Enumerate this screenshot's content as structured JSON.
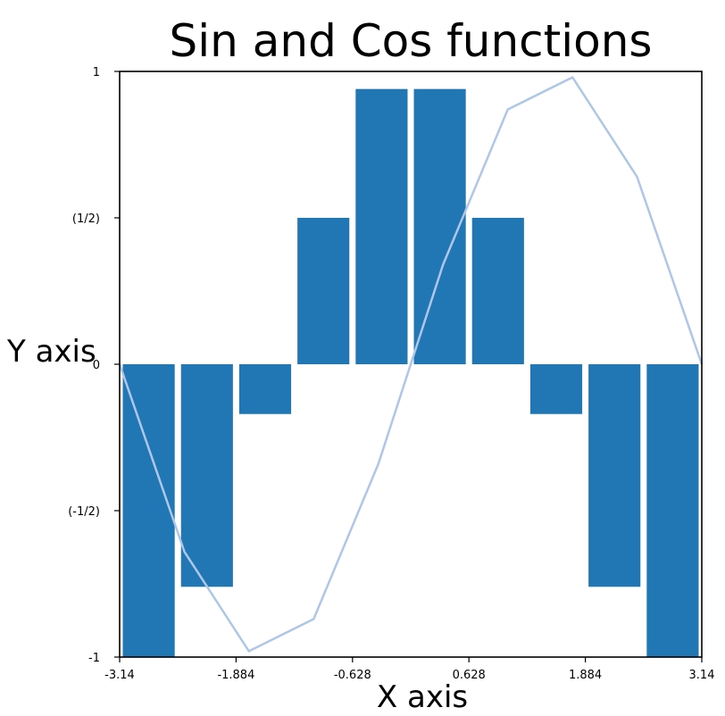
{
  "chart_data": {
    "type": "bar",
    "title": "Sin and Cos functions",
    "xlabel": "X axis",
    "ylabel": "Y axis",
    "xlim": [
      -3.14,
      3.14
    ],
    "ylim": [
      -1,
      1
    ],
    "xticks": [
      {
        "value": -3.14,
        "label": "-3.14"
      },
      {
        "value": -1.884,
        "label": "-1.884"
      },
      {
        "value": -0.628,
        "label": "-0.628"
      },
      {
        "value": 0.628,
        "label": "0.628"
      },
      {
        "value": 1.884,
        "label": "1.884"
      },
      {
        "value": 3.14,
        "label": "3.14"
      }
    ],
    "yticks": [
      {
        "value": 1,
        "label": "1"
      },
      {
        "value": 0.5,
        "label": "(1/2)"
      },
      {
        "value": 0,
        "label": "0"
      },
      {
        "value": -0.5,
        "label": "(-1/2)"
      },
      {
        "value": -1,
        "label": "-1"
      }
    ],
    "grid": false,
    "bar_series": {
      "color": "#2077b4",
      "bar_width": 0.56,
      "x": [
        -2.826,
        -2.198,
        -1.57,
        -0.942,
        -0.314,
        0.314,
        0.942,
        1.57,
        2.198,
        2.826
      ],
      "values": [
        -1,
        -0.76,
        -0.17,
        0.5,
        0.94,
        0.94,
        0.5,
        -0.17,
        -0.76,
        -1
      ]
    },
    "line_series": {
      "color": "#aec7e8",
      "x": [
        -3.14,
        -2.442,
        -1.745,
        -1.047,
        -0.349,
        0.349,
        1.047,
        1.745,
        2.442,
        3.14
      ],
      "values": [
        0,
        -0.64,
        -0.98,
        -0.87,
        -0.34,
        0.34,
        0.87,
        0.98,
        0.64,
        0
      ]
    }
  }
}
